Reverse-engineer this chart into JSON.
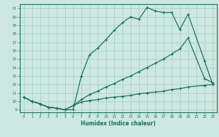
{
  "xlabel": "Humidex (Indice chaleur)",
  "bg_color": "#cce8e0",
  "line_color": "#1a6b5a",
  "grid_color": "#aacfc8",
  "xlim": [
    -0.5,
    23.5
  ],
  "ylim": [
    8.7,
    21.5
  ],
  "xticks": [
    0,
    1,
    2,
    3,
    4,
    5,
    6,
    7,
    8,
    9,
    10,
    11,
    12,
    13,
    14,
    15,
    16,
    17,
    18,
    19,
    20,
    21,
    22,
    23
  ],
  "yticks": [
    9,
    10,
    11,
    12,
    13,
    14,
    15,
    16,
    17,
    18,
    19,
    20,
    21
  ],
  "line1_x": [
    0,
    1,
    2,
    3,
    4,
    5,
    6,
    7,
    8,
    9,
    10,
    11,
    12,
    13,
    14,
    15,
    16,
    17,
    18,
    19,
    20,
    22,
    23
  ],
  "line1_y": [
    10.5,
    10.0,
    9.7,
    9.3,
    9.2,
    9.0,
    9.0,
    13.0,
    15.5,
    16.3,
    17.3,
    18.4,
    19.3,
    20.0,
    19.7,
    21.1,
    20.7,
    20.5,
    20.5,
    18.5,
    20.3,
    14.8,
    12.0
  ],
  "line2_x": [
    0,
    1,
    2,
    3,
    4,
    5,
    6,
    7,
    8,
    9,
    10,
    11,
    12,
    13,
    14,
    15,
    16,
    17,
    18,
    19,
    20,
    22,
    23
  ],
  "line2_y": [
    10.5,
    10.0,
    9.7,
    9.3,
    9.2,
    9.0,
    9.5,
    10.2,
    10.8,
    11.2,
    11.7,
    12.1,
    12.6,
    13.0,
    13.5,
    14.0,
    14.5,
    15.0,
    15.6,
    16.2,
    17.5,
    12.7,
    12.2
  ],
  "line3_x": [
    0,
    1,
    2,
    3,
    4,
    5,
    6,
    7,
    8,
    9,
    10,
    11,
    12,
    13,
    14,
    15,
    16,
    17,
    18,
    19,
    20,
    22,
    23
  ],
  "line3_y": [
    10.5,
    10.0,
    9.7,
    9.3,
    9.2,
    9.0,
    9.5,
    9.9,
    10.1,
    10.2,
    10.4,
    10.5,
    10.6,
    10.7,
    10.9,
    11.0,
    11.1,
    11.2,
    11.4,
    11.5,
    11.7,
    11.9,
    12.0
  ]
}
